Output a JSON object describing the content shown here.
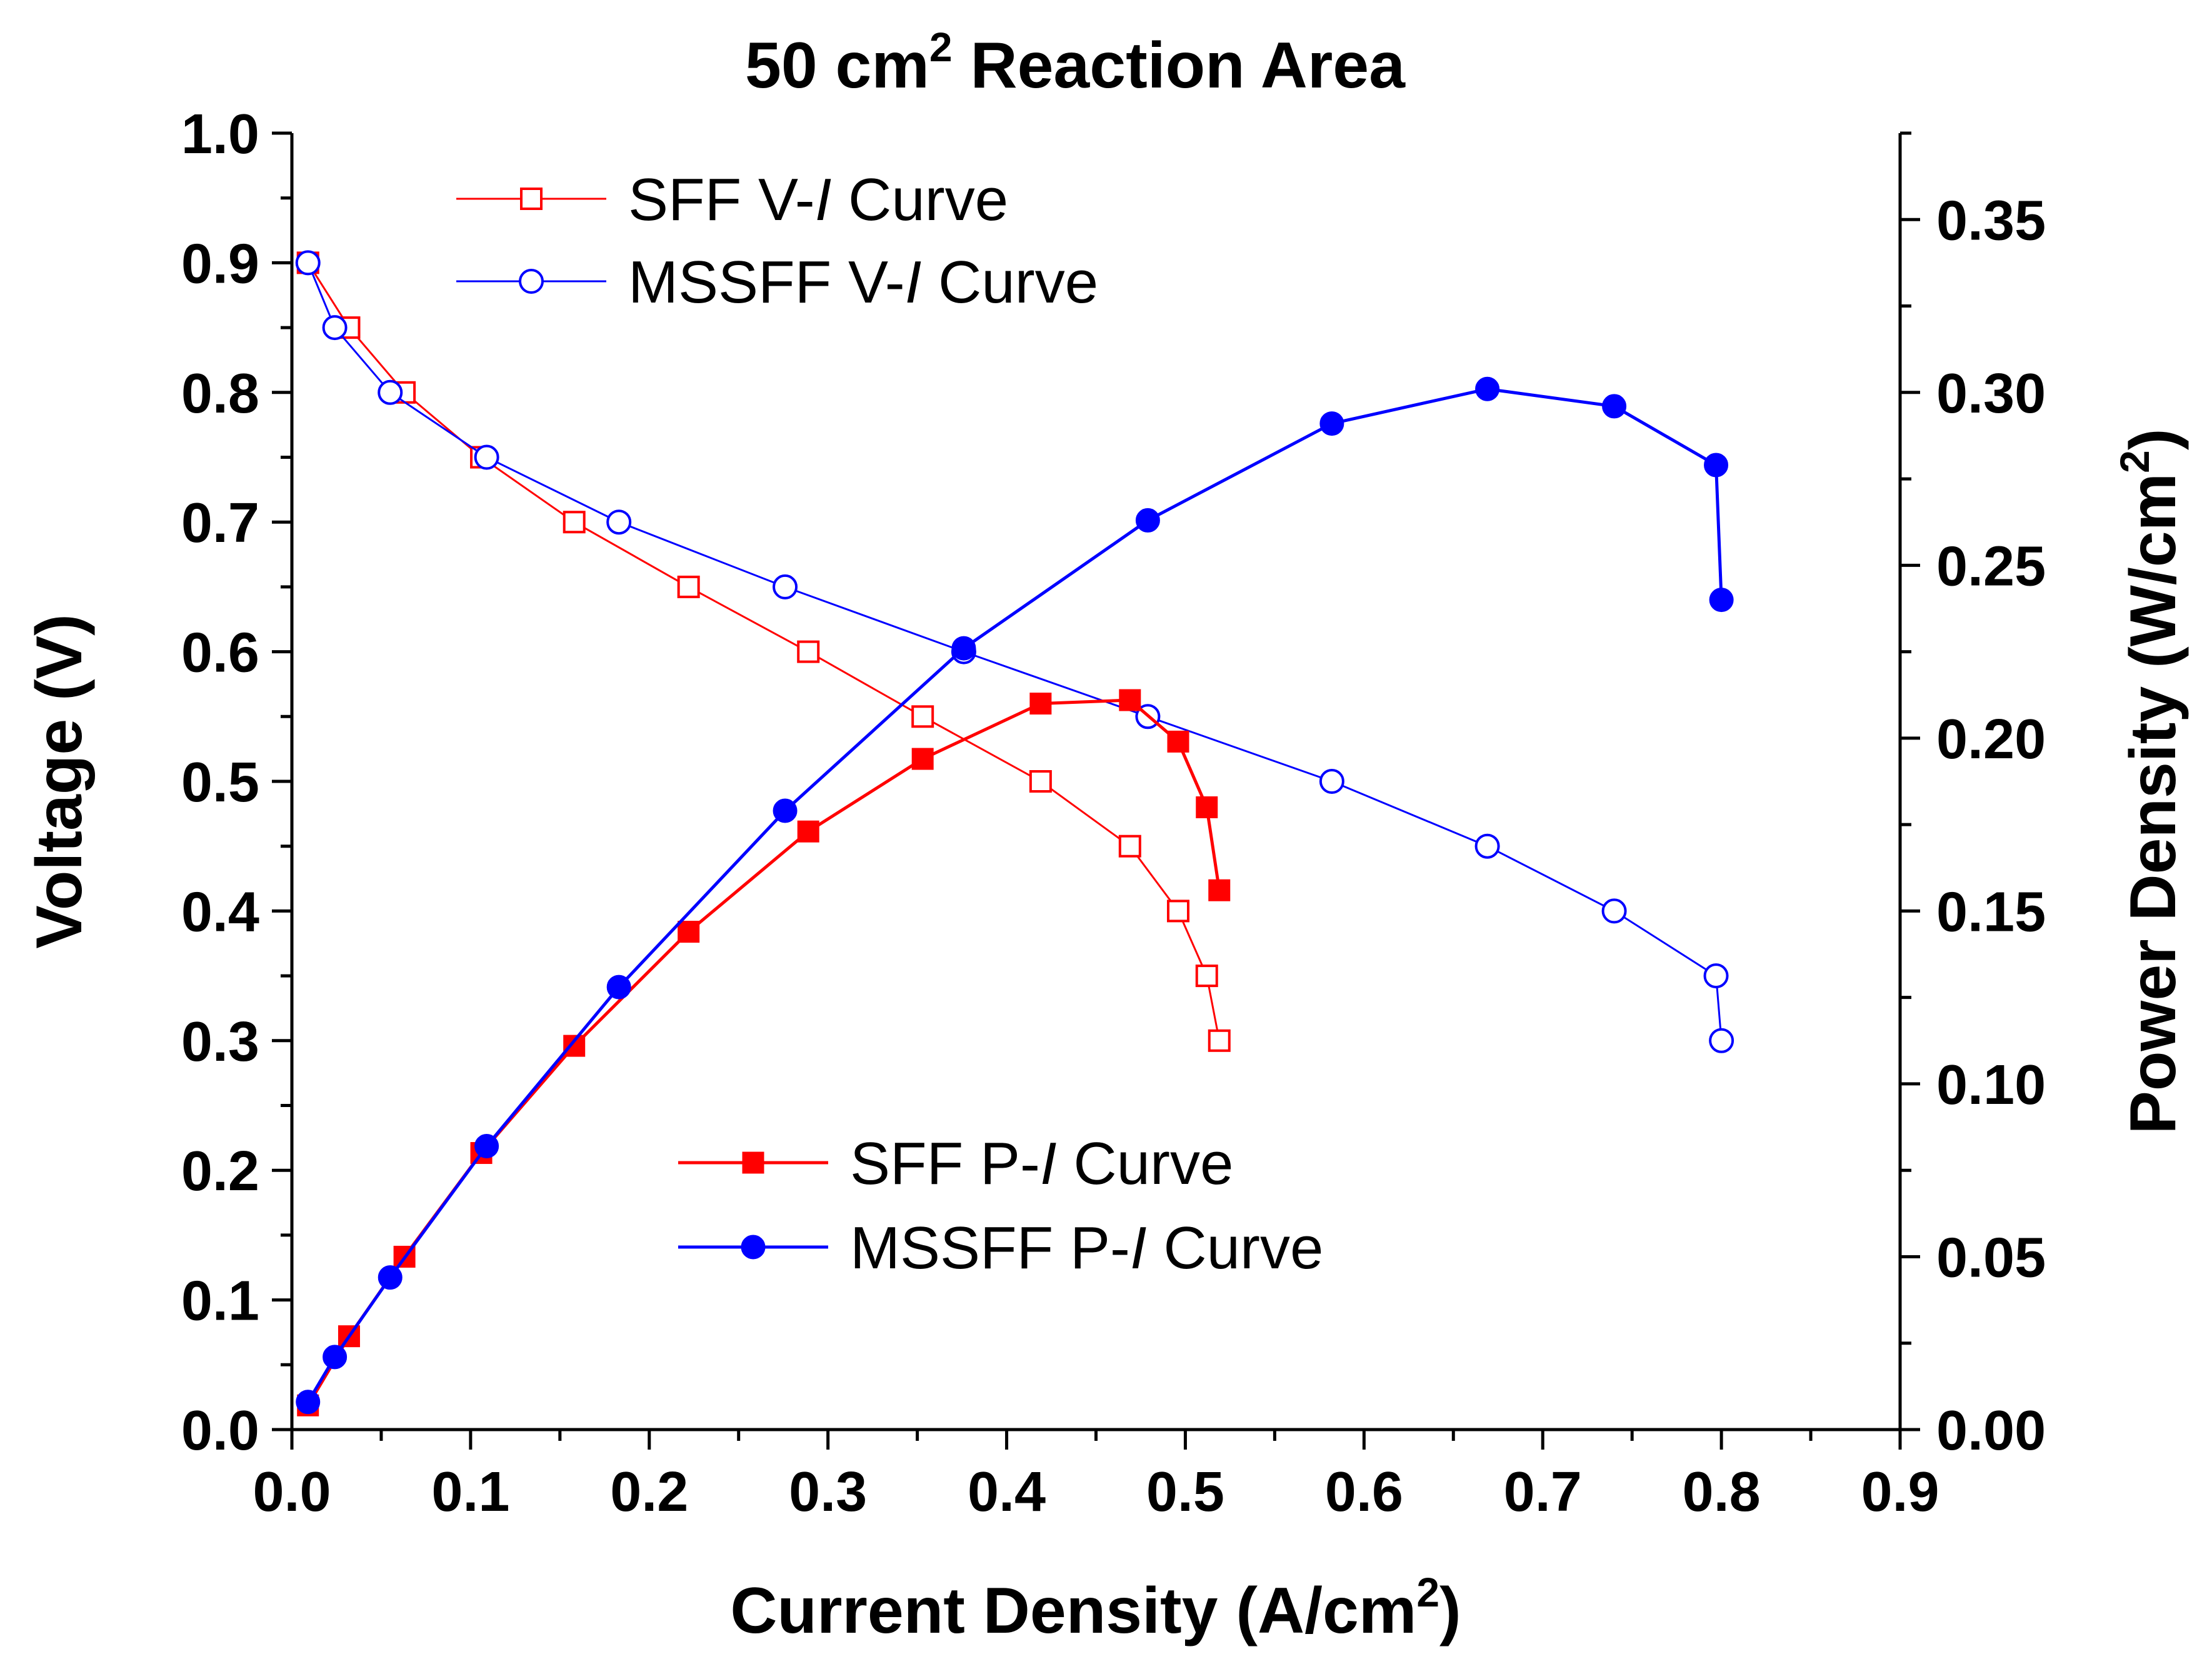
{
  "chart_data": {
    "type": "line",
    "title": "50 cm",
    "title_superscript": "2",
    "title_suffix": " Reaction Area",
    "xlabel": "Current Density (A/cm",
    "xlabel_superscript": "2",
    "xlabel_suffix": ")",
    "ylabel": "Voltage (V)",
    "y2label": "Power Density (W/cm",
    "y2label_superscript": "2",
    "y2label_suffix": ")",
    "xlim": [
      0,
      0.9
    ],
    "ylim": [
      0,
      1.0
    ],
    "y2lim": [
      0,
      0.375
    ],
    "x_ticks": [
      0.0,
      0.1,
      0.2,
      0.3,
      0.4,
      0.5,
      0.6,
      0.7,
      0.8,
      0.9
    ],
    "x_tick_labels": [
      "0.0",
      "0.1",
      "0.2",
      "0.3",
      "0.4",
      "0.5",
      "0.6",
      "0.7",
      "0.8",
      "0.9"
    ],
    "y_ticks": [
      0.0,
      0.1,
      0.2,
      0.3,
      0.4,
      0.5,
      0.6,
      0.7,
      0.8,
      0.9,
      1.0
    ],
    "y_tick_labels": [
      "0.0",
      "0.1",
      "0.2",
      "0.3",
      "0.4",
      "0.5",
      "0.6",
      "0.7",
      "0.8",
      "0.9",
      "1.0"
    ],
    "y2_ticks": [
      0.0,
      0.05,
      0.1,
      0.15,
      0.2,
      0.25,
      0.3,
      0.35
    ],
    "y2_tick_labels": [
      "0.00",
      "0.05",
      "0.10",
      "0.15",
      "0.20",
      "0.25",
      "0.30",
      "0.35"
    ],
    "series": [
      {
        "name": "SFF V-I Curve",
        "legend_prefix": "SFF V-",
        "legend_italic": "I",
        "legend_suffix": " Curve",
        "axis": "left",
        "color": "#ff0000",
        "marker": "square-open",
        "x": [
          0.009,
          0.032,
          0.063,
          0.106,
          0.158,
          0.222,
          0.289,
          0.353,
          0.419,
          0.469,
          0.496,
          0.512,
          0.519
        ],
        "y": [
          0.9,
          0.85,
          0.8,
          0.75,
          0.7,
          0.65,
          0.6,
          0.55,
          0.5,
          0.45,
          0.4,
          0.35,
          0.3
        ]
      },
      {
        "name": "MSSFF V-I Curve",
        "legend_prefix": "MSSFF V-",
        "legend_italic": "I",
        "legend_suffix": " Curve",
        "axis": "left",
        "color": "#0000ff",
        "marker": "circle-open",
        "x": [
          0.009,
          0.024,
          0.055,
          0.109,
          0.183,
          0.276,
          0.376,
          0.479,
          0.582,
          0.669,
          0.74,
          0.797,
          0.8
        ],
        "y": [
          0.9,
          0.85,
          0.8,
          0.75,
          0.7,
          0.65,
          0.6,
          0.55,
          0.5,
          0.45,
          0.4,
          0.35,
          0.3
        ]
      },
      {
        "name": "SFF P-I Curve",
        "legend_prefix": "SFF P-",
        "legend_italic": "I",
        "legend_suffix": " Curve",
        "axis": "right",
        "color": "#ff0000",
        "marker": "square-filled",
        "x": [
          0.009,
          0.032,
          0.063,
          0.106,
          0.158,
          0.222,
          0.289,
          0.353,
          0.419,
          0.469,
          0.496,
          0.512,
          0.519
        ],
        "y": [
          0.007,
          0.027,
          0.05,
          0.08,
          0.111,
          0.144,
          0.173,
          0.194,
          0.21,
          0.211,
          0.199,
          0.18,
          0.156
        ]
      },
      {
        "name": "MSSFF P-I Curve",
        "legend_prefix": "MSSFF P-",
        "legend_italic": "I",
        "legend_suffix": " Curve",
        "axis": "right",
        "color": "#0000ff",
        "marker": "circle-filled",
        "x": [
          0.009,
          0.024,
          0.055,
          0.109,
          0.183,
          0.276,
          0.376,
          0.479,
          0.582,
          0.669,
          0.74,
          0.797,
          0.8
        ],
        "y": [
          0.008,
          0.021,
          0.044,
          0.082,
          0.128,
          0.179,
          0.226,
          0.263,
          0.291,
          0.301,
          0.296,
          0.279,
          0.24
        ]
      }
    ],
    "legend": [
      {
        "group": "top-left",
        "series": [
          "SFF V-I Curve",
          "MSSFF V-I Curve"
        ]
      },
      {
        "group": "bottom-center",
        "series": [
          "SFF P-I Curve",
          "MSSFF P-I Curve"
        ]
      }
    ]
  }
}
